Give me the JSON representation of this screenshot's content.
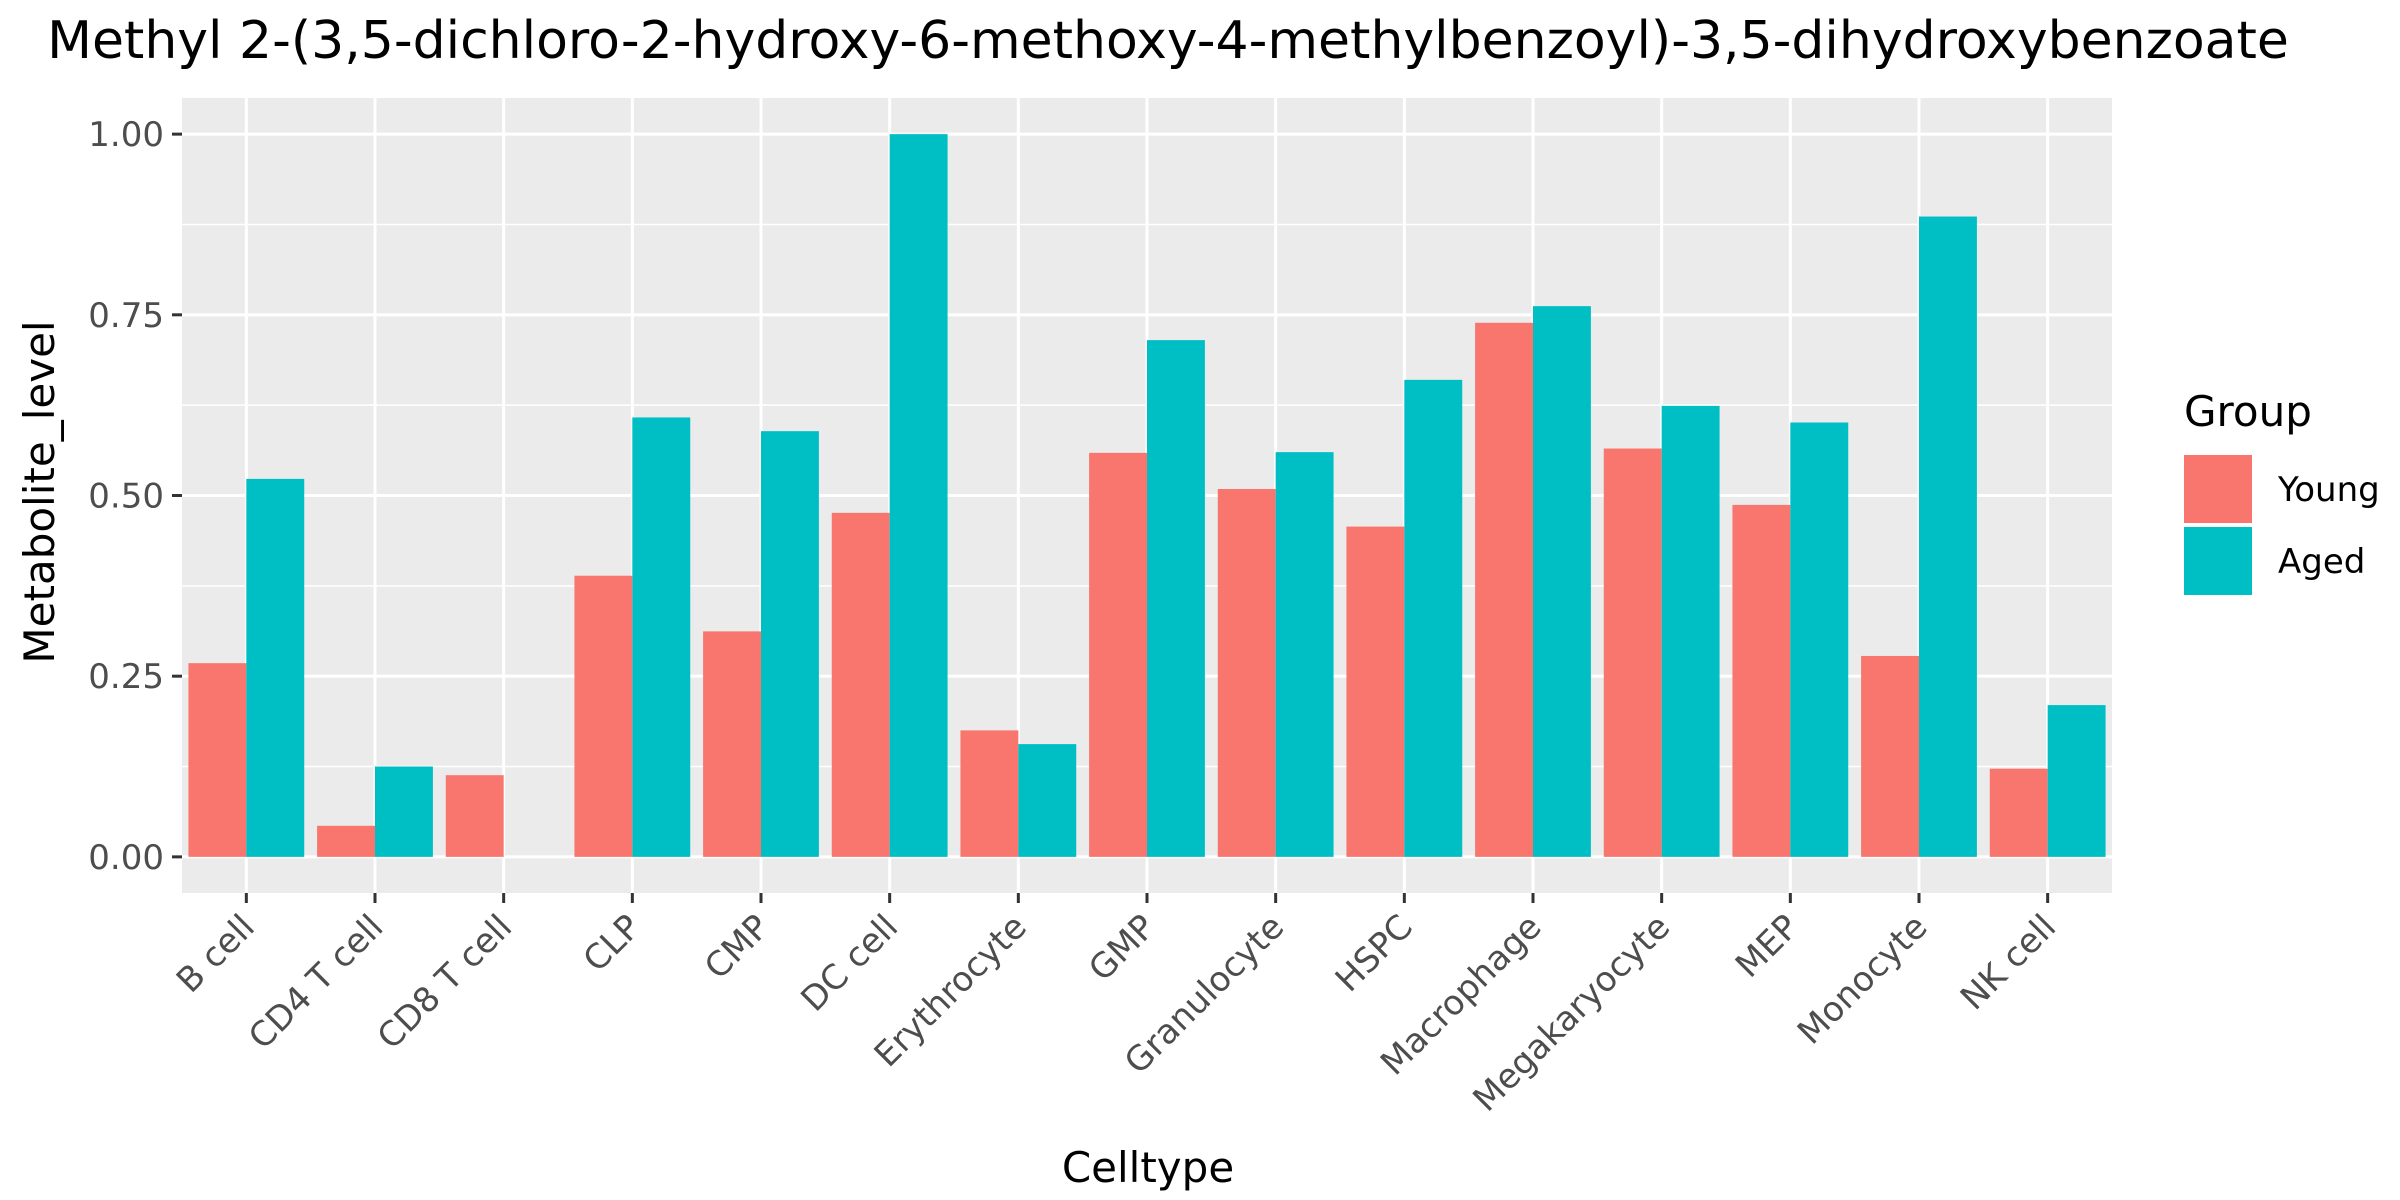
{
  "chart_data": {
    "type": "bar",
    "title": "Methyl 2-(3,5-dichloro-2-hydroxy-6-methoxy-4-methylbenzoyl)-3,5-dihydroxybenzoate",
    "xlabel": "Celltype",
    "ylabel": "Metabolite_level",
    "categories": [
      "B cell",
      "CD4 T cell",
      "CD8 T cell",
      "CLP",
      "CMP",
      "DC cell",
      "Erythrocyte",
      "GMP",
      "Granulocyte",
      "HSPC",
      "Macrophage",
      "Megakaryocyte",
      "MEP",
      "Monocyte",
      "NK cell"
    ],
    "series": [
      {
        "name": "Young",
        "color": "#F8766D",
        "values": [
          0.268,
          0.043,
          0.113,
          0.389,
          0.312,
          0.476,
          0.175,
          0.559,
          0.509,
          0.457,
          0.739,
          0.565,
          0.487,
          0.278,
          0.122
        ]
      },
      {
        "name": "Aged",
        "color": "#00BFC4",
        "values": [
          0.523,
          0.125,
          0.0,
          0.608,
          0.589,
          1.0,
          0.156,
          0.715,
          0.56,
          0.66,
          0.762,
          0.624,
          0.601,
          0.886,
          0.21
        ]
      }
    ],
    "yticks": [
      0.0,
      0.25,
      0.5,
      0.75,
      1.0
    ],
    "ytick_labels": [
      "0.00",
      "0.25",
      "0.50",
      "0.75",
      "1.00"
    ],
    "ylim": [
      -0.05,
      1.05
    ],
    "legend": {
      "title": "Group",
      "position": "right"
    },
    "grid": true,
    "panel_color": "#EBEBEB",
    "grid_color": "#FFFFFF"
  }
}
